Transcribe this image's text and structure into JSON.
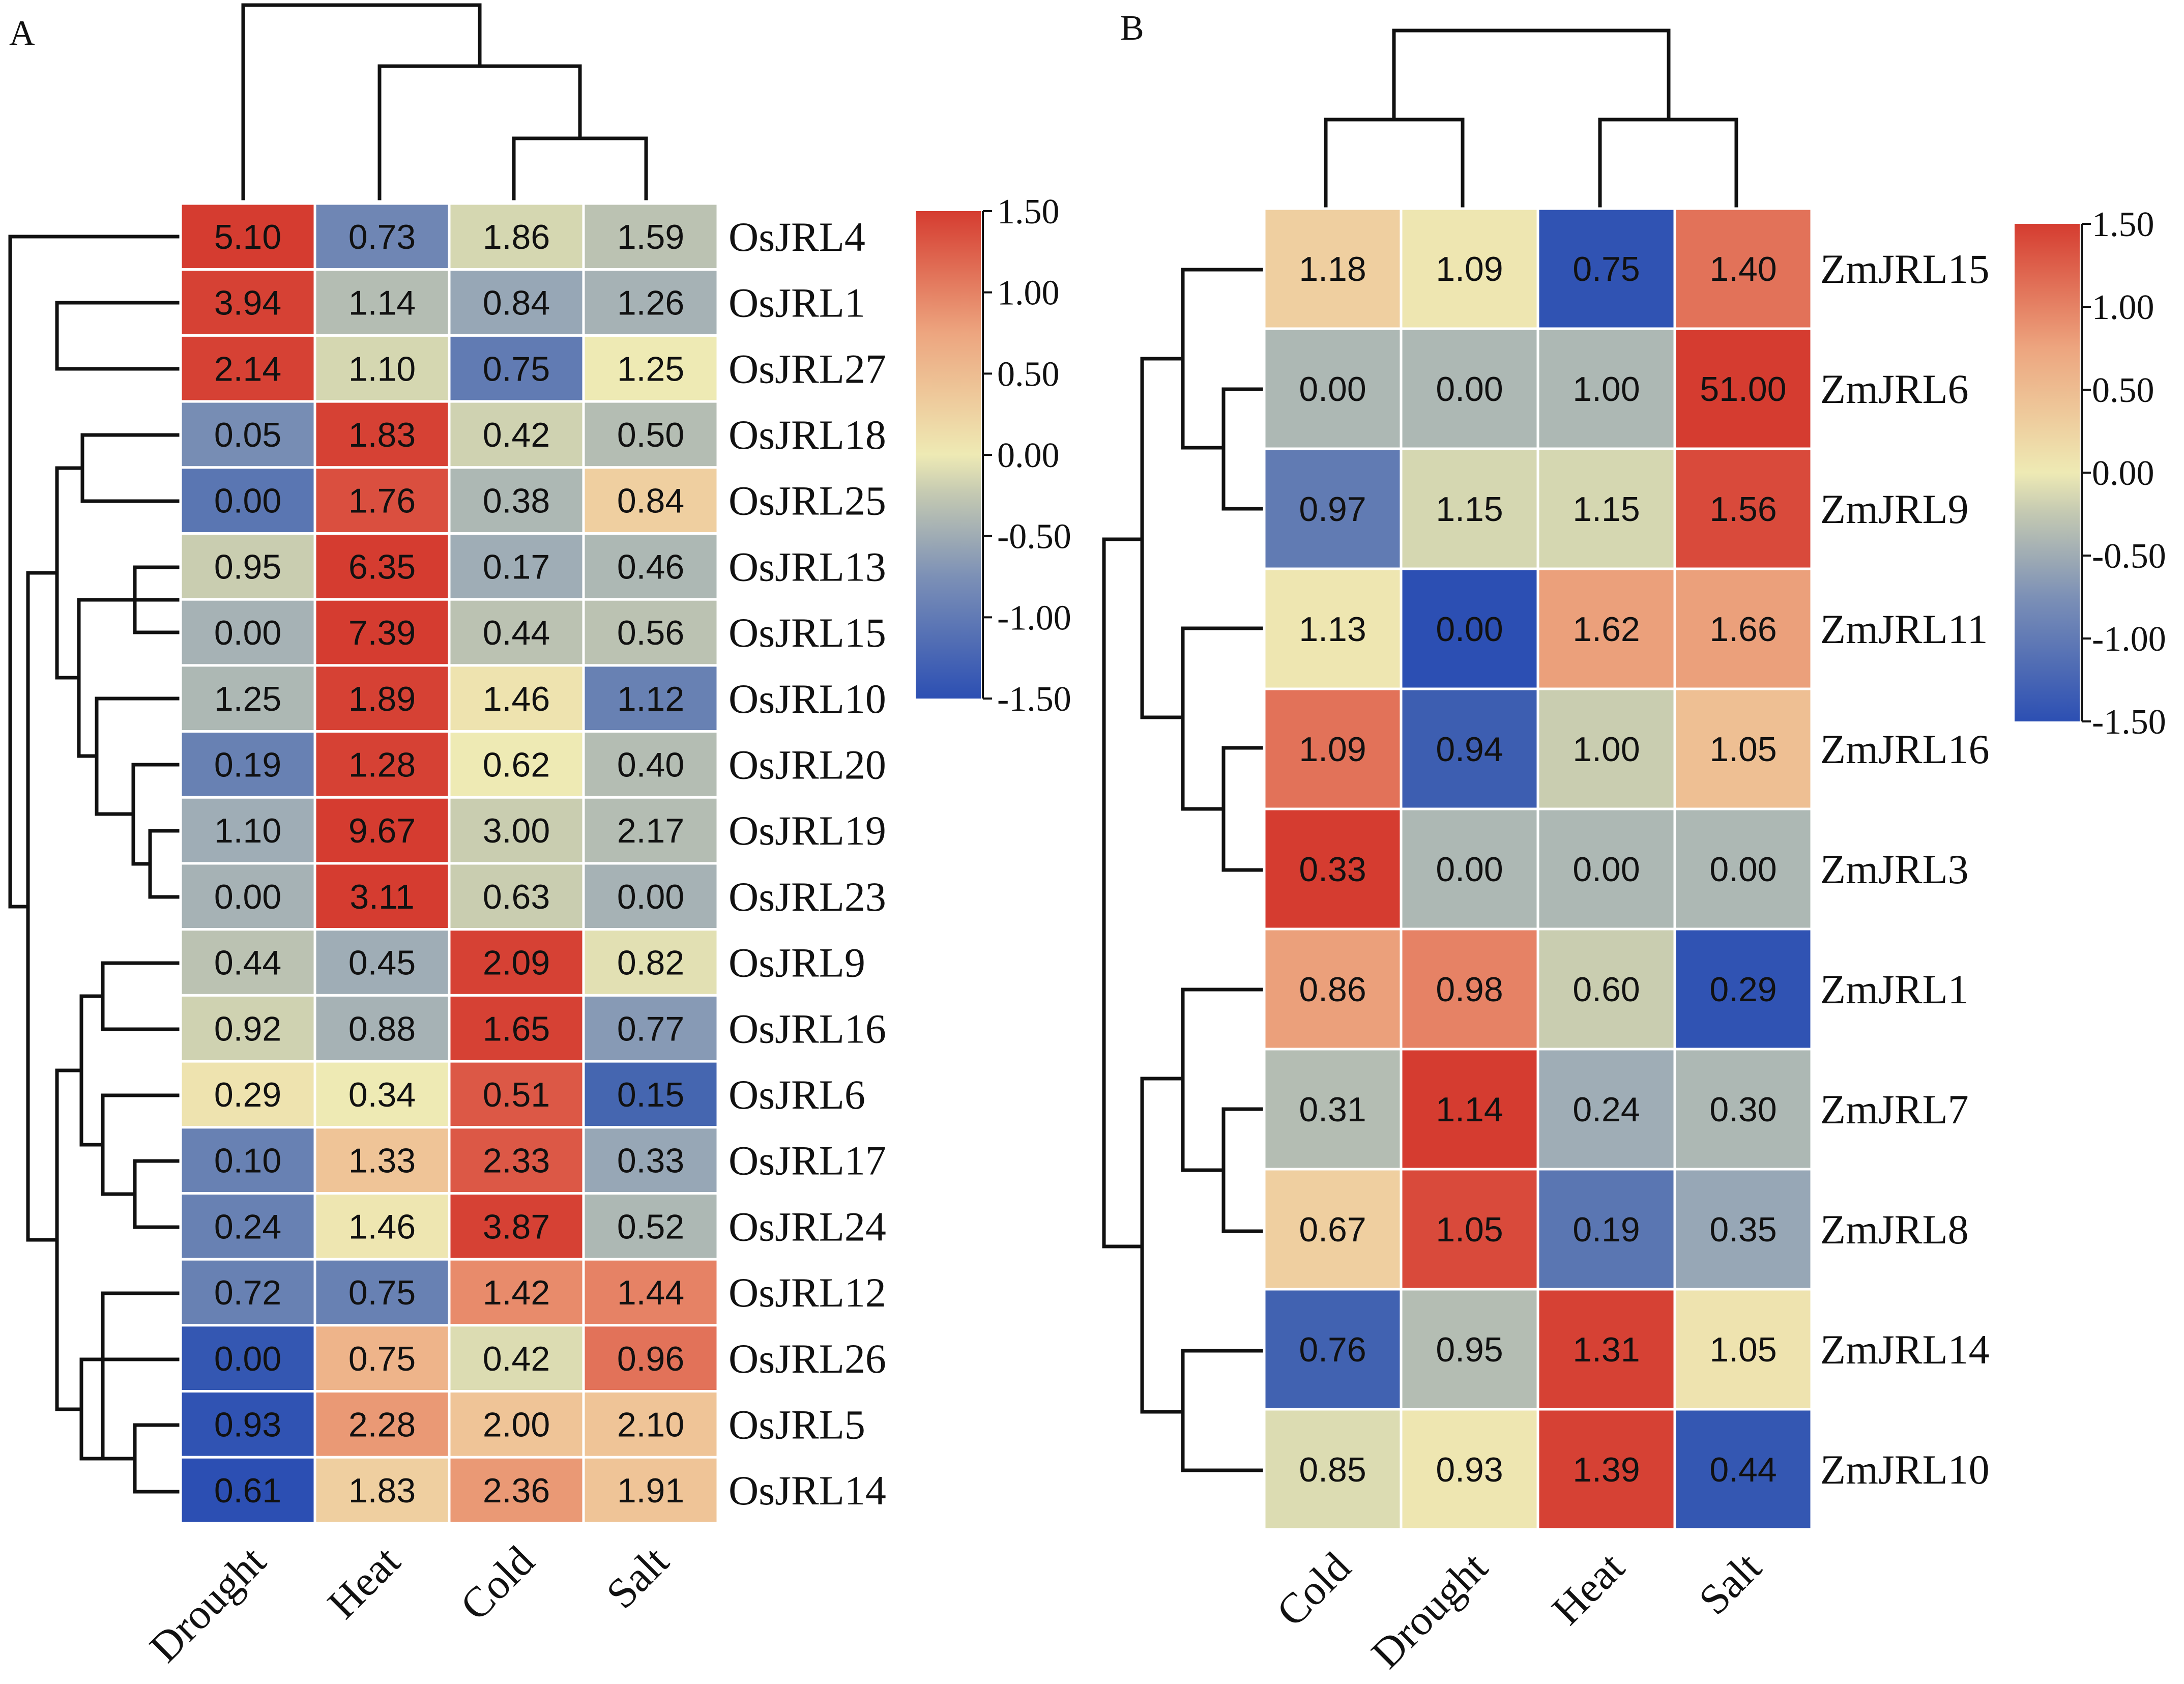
{
  "chart_data": [
    {
      "type": "heatmap",
      "panel": "A",
      "columns": [
        "Drought",
        "Heat",
        "Cold",
        "Salt"
      ],
      "rows": [
        "OsJRL4",
        "OsJRL1",
        "OsJRL27",
        "OsJRL18",
        "OsJRL25",
        "OsJRL13",
        "OsJRL15",
        "OsJRL10",
        "OsJRL20",
        "OsJRL19",
        "OsJRL23",
        "OsJRL9",
        "OsJRL16",
        "OsJRL6",
        "OsJRL17",
        "OsJRL24",
        "OsJRL12",
        "OsJRL26",
        "OsJRL5",
        "OsJRL14"
      ],
      "labels": [
        [
          "5.10",
          "0.73",
          "1.86",
          "1.59"
        ],
        [
          "3.94",
          "1.14",
          "0.84",
          "1.26"
        ],
        [
          "2.14",
          "1.10",
          "0.75",
          "1.25"
        ],
        [
          "0.05",
          "1.83",
          "0.42",
          "0.50"
        ],
        [
          "0.00",
          "1.76",
          "0.38",
          "0.84"
        ],
        [
          "0.95",
          "6.35",
          "0.17",
          "0.46"
        ],
        [
          "0.00",
          "7.39",
          "0.44",
          "0.56"
        ],
        [
          "1.25",
          "1.89",
          "1.46",
          "1.12"
        ],
        [
          "0.19",
          "1.28",
          "0.62",
          "0.40"
        ],
        [
          "1.10",
          "9.67",
          "3.00",
          "2.17"
        ],
        [
          "0.00",
          "3.11",
          "0.63",
          "0.00"
        ],
        [
          "0.44",
          "0.45",
          "2.09",
          "0.82"
        ],
        [
          "0.92",
          "0.88",
          "1.65",
          "0.77"
        ],
        [
          "0.29",
          "0.34",
          "0.51",
          "0.15"
        ],
        [
          "0.10",
          "1.33",
          "2.33",
          "0.33"
        ],
        [
          "0.24",
          "1.46",
          "3.87",
          "0.52"
        ],
        [
          "0.72",
          "0.75",
          "1.42",
          "1.44"
        ],
        [
          "0.00",
          "0.75",
          "0.42",
          "0.96"
        ],
        [
          "0.93",
          "2.28",
          "2.00",
          "2.10"
        ],
        [
          "0.61",
          "1.83",
          "2.36",
          "1.91"
        ]
      ],
      "color_z": [
        [
          1.5,
          -0.9,
          -0.2,
          -0.4
        ],
        [
          1.45,
          -0.45,
          -0.65,
          -0.55
        ],
        [
          1.45,
          -0.2,
          -1.0,
          0.0
        ],
        [
          -0.85,
          1.45,
          -0.25,
          -0.45
        ],
        [
          -1.05,
          1.3,
          -0.5,
          0.35
        ],
        [
          -0.3,
          1.5,
          -0.6,
          -0.5
        ],
        [
          -0.55,
          1.5,
          -0.4,
          -0.4
        ],
        [
          -0.5,
          1.45,
          0.1,
          -0.95
        ],
        [
          -0.95,
          1.45,
          0.0,
          -0.45
        ],
        [
          -0.6,
          1.5,
          -0.3,
          -0.45
        ],
        [
          -0.55,
          1.5,
          -0.3,
          -0.55
        ],
        [
          -0.4,
          -0.6,
          1.45,
          -0.1
        ],
        [
          -0.25,
          -0.55,
          1.45,
          -0.75
        ],
        [
          0.1,
          0.0,
          1.2,
          -1.2
        ],
        [
          -0.95,
          0.45,
          1.2,
          -0.65
        ],
        [
          -0.95,
          0.05,
          1.45,
          -0.5
        ],
        [
          -0.95,
          -0.95,
          0.9,
          0.95
        ],
        [
          -1.4,
          0.6,
          -0.15,
          1.05
        ],
        [
          -1.45,
          0.8,
          0.45,
          0.45
        ],
        [
          -1.5,
          0.35,
          0.8,
          0.45
        ]
      ],
      "colorbar": {
        "ticks": [
          "1.50",
          "1.00",
          "0.50",
          "0.00",
          "-0.50",
          "-1.00",
          "-1.50"
        ]
      }
    },
    {
      "type": "heatmap",
      "panel": "B",
      "columns": [
        "Cold",
        "Drought",
        "Heat",
        "Salt"
      ],
      "rows": [
        "ZmJRL15",
        "ZmJRL6",
        "ZmJRL9",
        "ZmJRL11",
        "ZmJRL16",
        "ZmJRL3",
        "ZmJRL1",
        "ZmJRL7",
        "ZmJRL8",
        "ZmJRL14",
        "ZmJRL10"
      ],
      "labels": [
        [
          "1.18",
          "1.09",
          "0.75",
          "1.40"
        ],
        [
          "0.00",
          "0.00",
          "1.00",
          "51.00"
        ],
        [
          "0.97",
          "1.15",
          "1.15",
          "1.56"
        ],
        [
          "1.13",
          "0.00",
          "1.62",
          "1.66"
        ],
        [
          "1.09",
          "0.94",
          "1.00",
          "1.05"
        ],
        [
          "0.33",
          "0.00",
          "0.00",
          "0.00"
        ],
        [
          "0.86",
          "0.98",
          "0.60",
          "0.29"
        ],
        [
          "0.31",
          "1.14",
          "0.24",
          "0.30"
        ],
        [
          "0.67",
          "1.05",
          "0.19",
          "0.35"
        ],
        [
          "0.76",
          "0.95",
          "1.31",
          "1.05"
        ],
        [
          "0.85",
          "0.93",
          "1.39",
          "0.44"
        ]
      ],
      "color_z": [
        [
          0.35,
          0.05,
          -1.45,
          1.05
        ],
        [
          -0.5,
          -0.5,
          -0.5,
          1.5
        ],
        [
          -1.0,
          -0.2,
          -0.2,
          1.35
        ],
        [
          0.05,
          -1.5,
          0.75,
          0.75
        ],
        [
          1.05,
          -1.3,
          -0.3,
          0.5
        ],
        [
          1.5,
          -0.5,
          -0.5,
          -0.5
        ],
        [
          0.75,
          0.95,
          -0.3,
          -1.45
        ],
        [
          -0.45,
          1.5,
          -0.6,
          -0.5
        ],
        [
          0.35,
          1.35,
          -1.05,
          -0.65
        ],
        [
          -1.25,
          -0.45,
          1.45,
          0.1
        ],
        [
          -0.15,
          0.05,
          1.45,
          -1.4
        ]
      ],
      "colorbar": {
        "ticks": [
          "1.50",
          "1.00",
          "0.50",
          "0.00",
          "-0.50",
          "-1.00",
          "-1.50"
        ]
      }
    }
  ],
  "panel_labels": {
    "a": "A",
    "b": "B"
  },
  "colors": {
    "scale": [
      "#2c4fb3",
      "#4566b0",
      "#6f86b4",
      "#9fadb6",
      "#c9cdb0",
      "#eeeab4",
      "#efd4a4",
      "#eeb48a",
      "#e88b6b",
      "#dc5846",
      "#d53c30"
    ]
  }
}
